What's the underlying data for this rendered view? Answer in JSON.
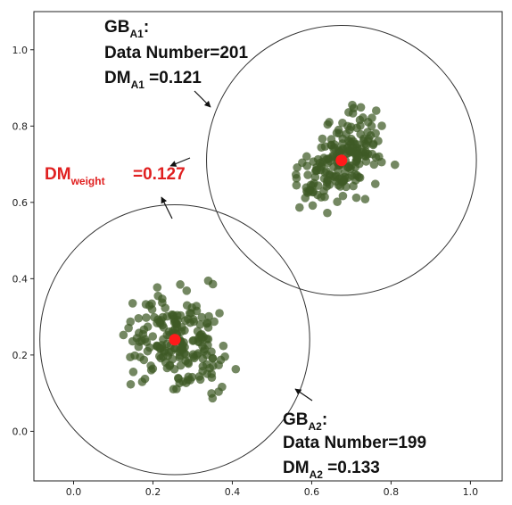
{
  "chart_data": {
    "type": "scatter",
    "title": "",
    "xlabel": "",
    "ylabel": "",
    "xlim": [
      -0.1,
      1.08
    ],
    "ylim": [
      -0.13,
      1.1
    ],
    "xticks": [
      "0.0",
      "0.2",
      "0.4",
      "0.6",
      "0.8",
      "1.0"
    ],
    "yticks": [
      "0.0",
      "0.2",
      "0.4",
      "0.6",
      "0.8",
      "1.0"
    ],
    "grid": false,
    "point_color": "#3f5a25",
    "center_color": "#ff1a1a",
    "circle_color": "#333333",
    "clusters": [
      {
        "id": "A1",
        "center": [
          0.675,
          0.71
        ],
        "radius_x": 0.34,
        "count": 201
      },
      {
        "id": "A2",
        "center": [
          0.255,
          0.24
        ],
        "radius_x": 0.34,
        "count": 199
      }
    ],
    "annotations": {
      "a1": {
        "gb": "GB",
        "gb_sub": "A1",
        "gb_colon": ":",
        "count_text": "Data Number=201",
        "dm": "DM",
        "dm_sub": "A1",
        "dm_val": " =0.121"
      },
      "a2": {
        "gb": "GB",
        "gb_sub": "A2",
        "gb_colon": ":",
        "count_text": "Data Number=199",
        "dm": "DM",
        "dm_sub": "A2",
        "dm_val": " =0.133"
      },
      "weight": {
        "dm": "DM",
        "dm_sub": "weight",
        "dm_val": "=0.127"
      }
    }
  }
}
